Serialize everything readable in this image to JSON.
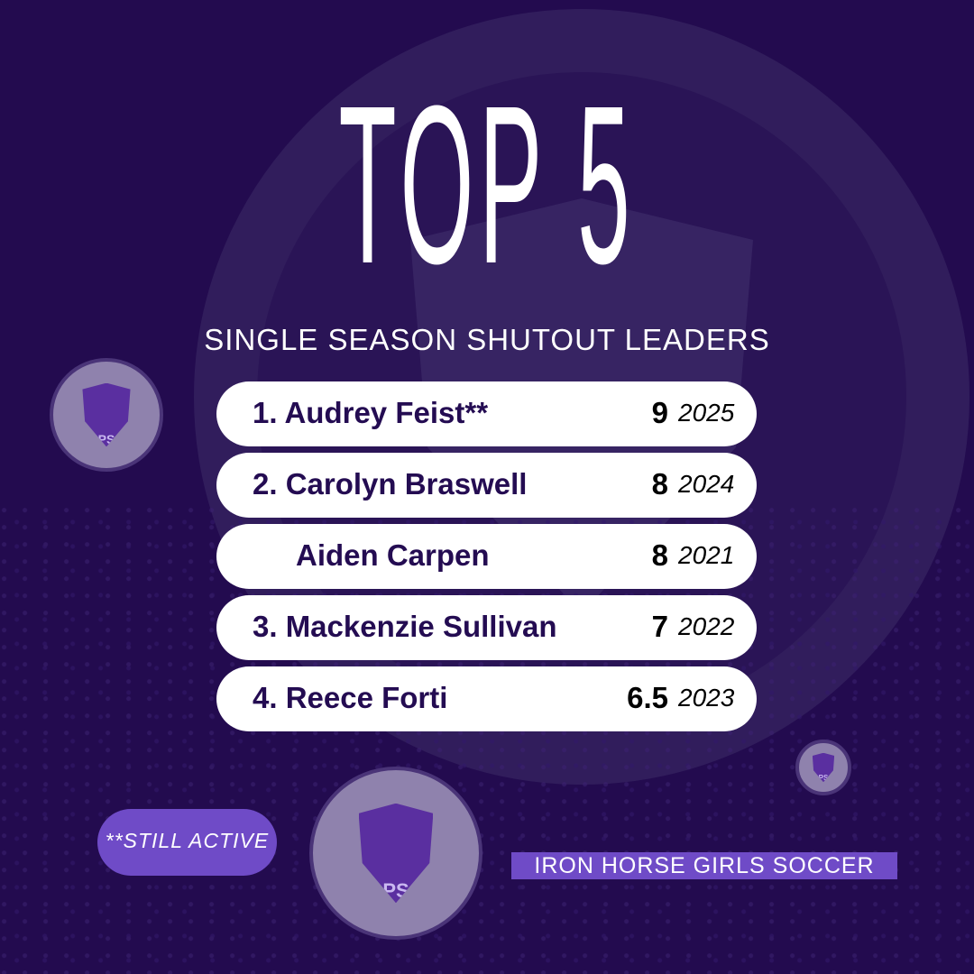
{
  "title": "TOP 5",
  "subtitle": "SINGLE SEASON SHUTOUT LEADERS",
  "leaders": [
    {
      "name": "1. Audrey Feist**",
      "shutouts": "9",
      "year": "2025"
    },
    {
      "name": "2. Carolyn Braswell",
      "shutouts": "8",
      "year": "2024"
    },
    {
      "name": "Aiden Carpen",
      "shutouts": "8",
      "year": "2021"
    },
    {
      "name": "3. Mackenzie Sullivan",
      "shutouts": "7",
      "year": "2022"
    },
    {
      "name": "4. Reece Forti",
      "shutouts": "6.5",
      "year": "2023"
    }
  ],
  "footnote": "**STILL ACTIVE",
  "team": "IRON HORSE GIRLS SOCCER",
  "logo_text": "PS",
  "colors": {
    "background": "#230b4f",
    "accent": "#6f4bc7",
    "text": "#240c52"
  }
}
